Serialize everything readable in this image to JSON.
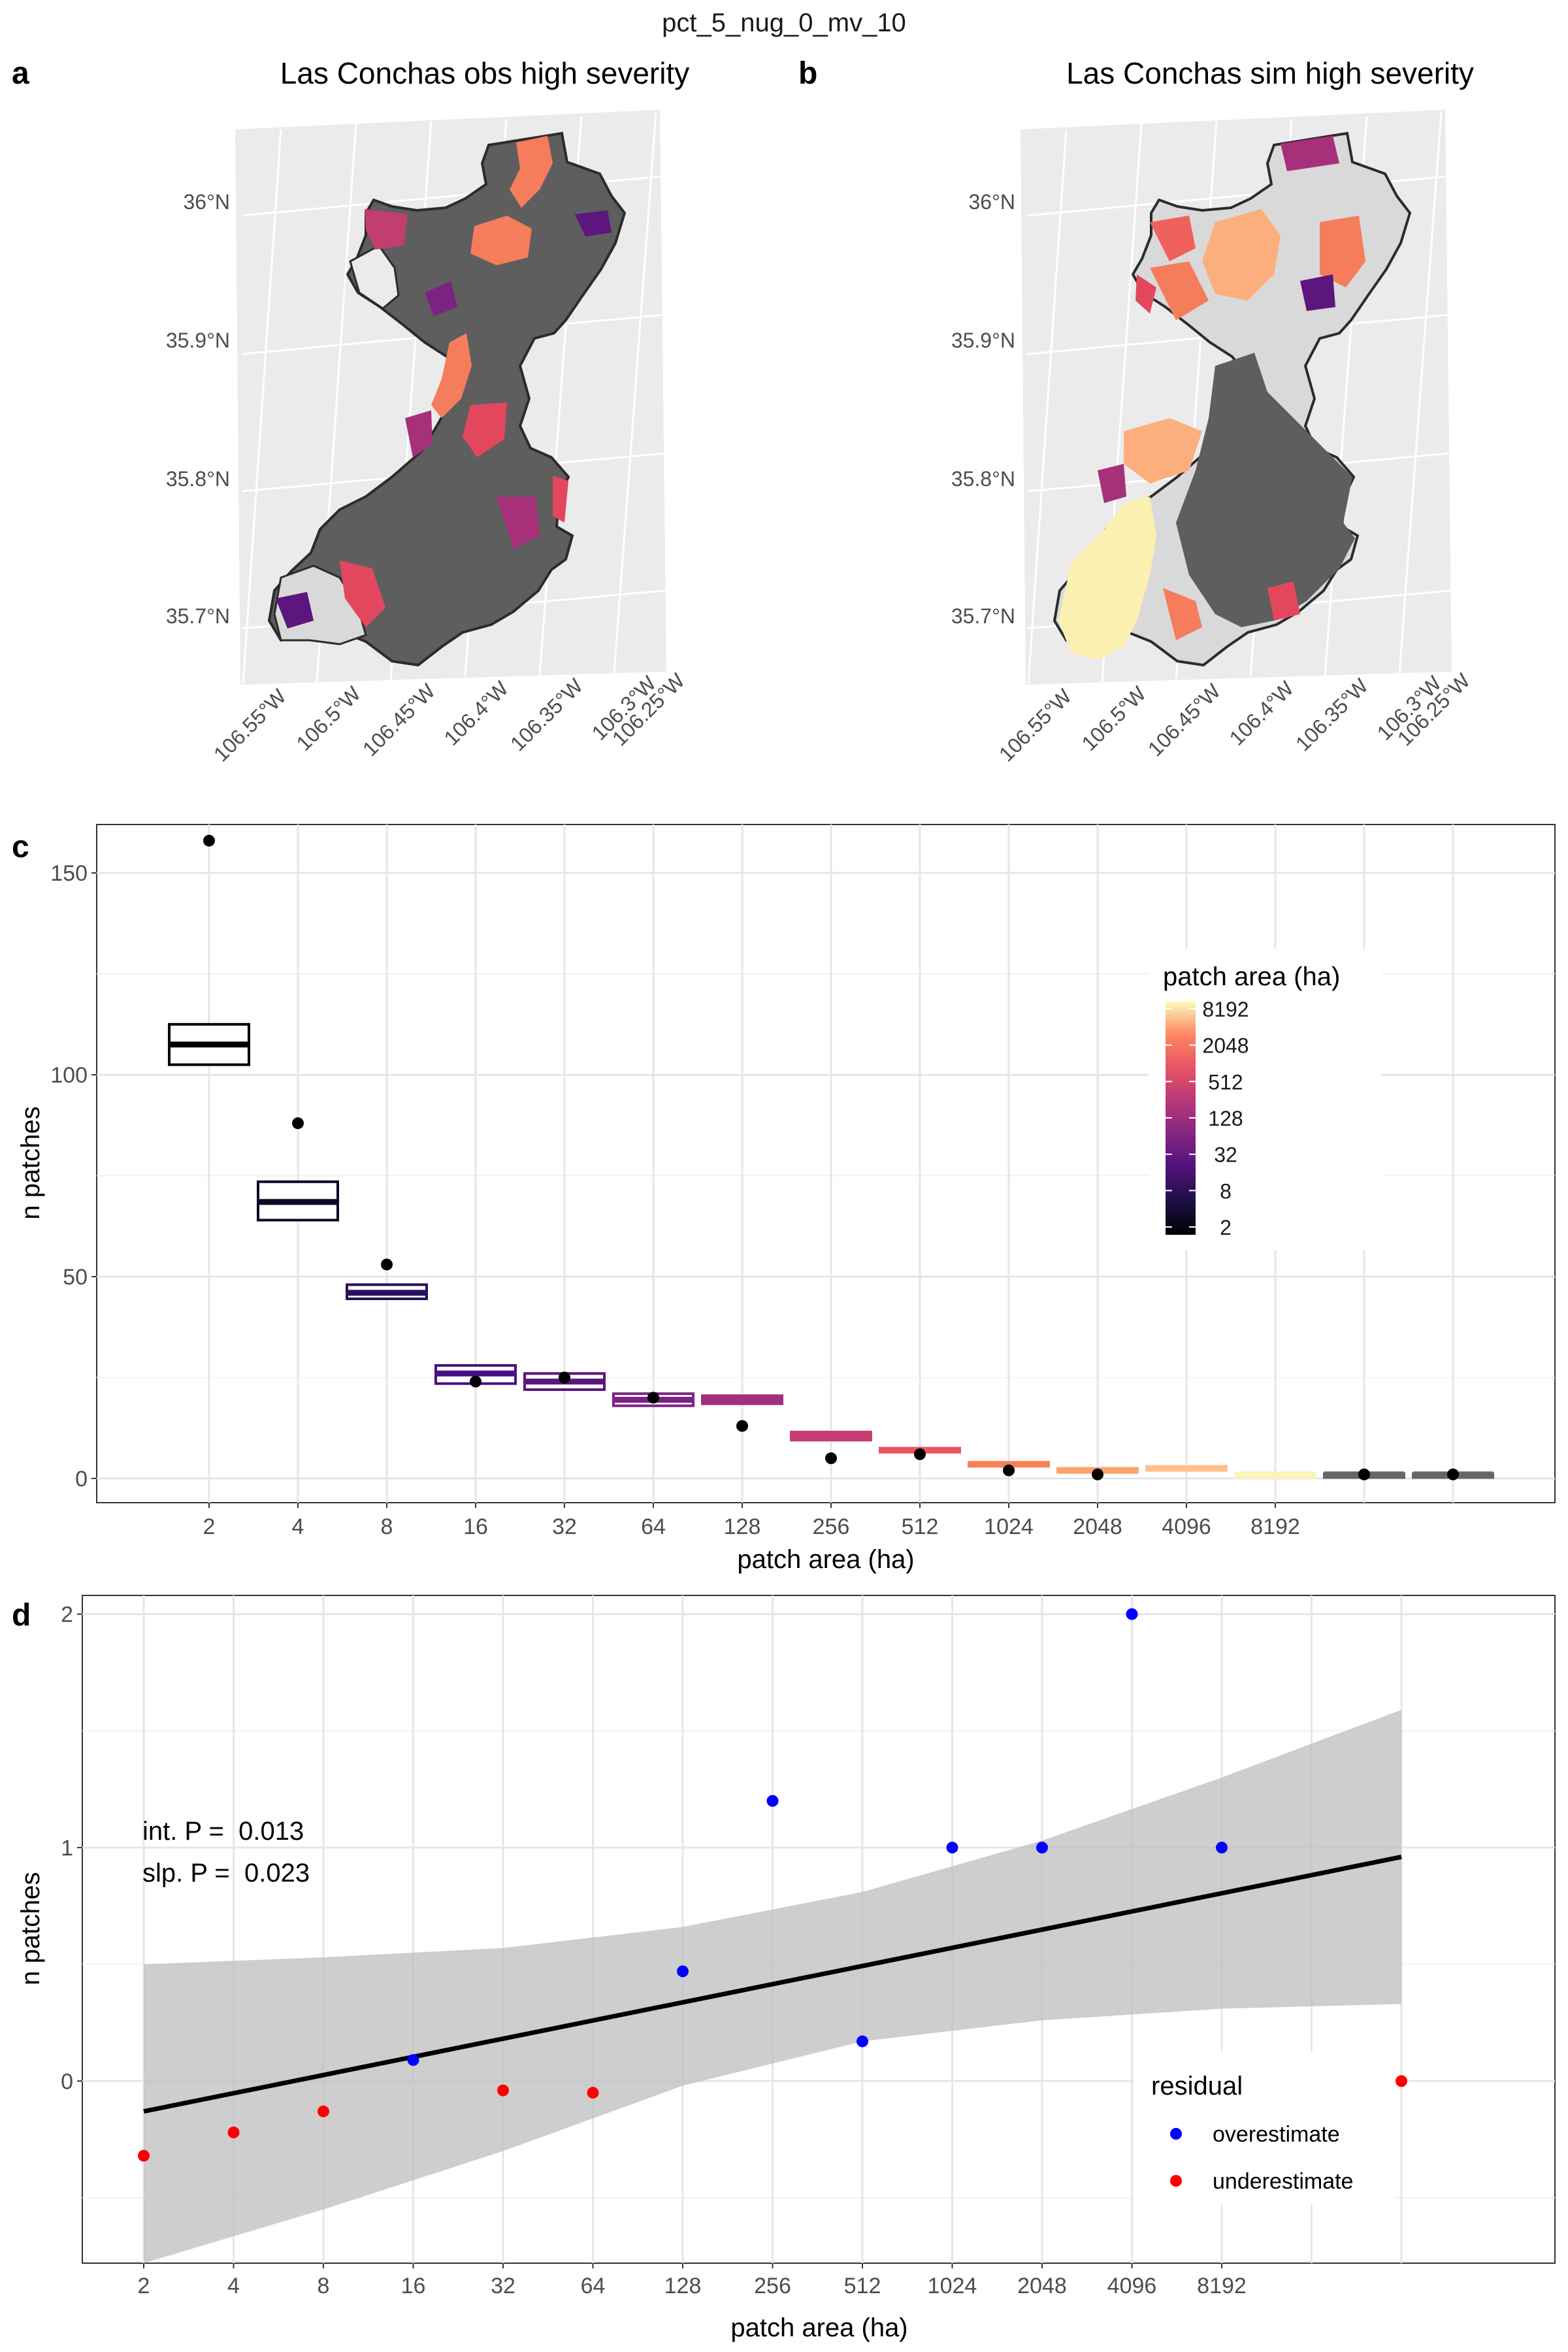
{
  "figure_title": "pct_5_nug_0_mv_10",
  "panels": {
    "a": {
      "letter": "a",
      "title": "Las Conchas obs high severity"
    },
    "b": {
      "letter": "b",
      "title": "Las Conchas sim high severity"
    },
    "c": {
      "letter": "c"
    },
    "d": {
      "letter": "d"
    }
  },
  "maps": {
    "lat_labels": [
      "36°N",
      "35.9°N",
      "35.8°N",
      "35.7°N"
    ],
    "lon_labels": [
      "106.55°W",
      "106.5°W",
      "106.45°W",
      "106.4°W",
      "106.35°W",
      "106.3°W",
      "106.25°W"
    ]
  },
  "chart_data": [
    {
      "panel": "c",
      "type": "boxplot",
      "xlabel": "patch area (ha)",
      "ylabel": "n patches",
      "x_scale": "log2",
      "ylim": [
        -6,
        162
      ],
      "y_ticks": [
        0,
        50,
        100,
        150
      ],
      "categories": [
        "2",
        "4",
        "8",
        "16",
        "32",
        "64",
        "128",
        "256",
        "512",
        "1024",
        "2048",
        "4096",
        "8192",
        "",
        ""
      ],
      "box_fill_colors": [
        "#000004",
        "#0c0926",
        "#2a0f5c",
        "#481184",
        "#5b167e",
        "#7b2382",
        "#a02f7c",
        "#c73d73",
        "#e85460",
        "#f78258",
        "#fca46c",
        "#fec18a",
        "#fcf3b8",
        "#666666",
        "#666666"
      ],
      "boxes": [
        {
          "low": 102.5,
          "median": 107.5,
          "high": 112.5
        },
        {
          "low": 64,
          "median": 68.5,
          "high": 73.5
        },
        {
          "low": 44.5,
          "median": 46,
          "high": 48
        },
        {
          "low": 23.5,
          "median": 26,
          "high": 28
        },
        {
          "low": 22,
          "median": 24,
          "high": 26
        },
        {
          "low": 18,
          "median": 19.5,
          "high": 21
        },
        {
          "low": 18.5,
          "median": 19.5,
          "high": 20.5
        },
        {
          "low": 9.5,
          "median": 10.5,
          "high": 11.5
        },
        {
          "low": 6.5,
          "median": 7,
          "high": 7.5
        },
        {
          "low": 3,
          "median": 3.5,
          "high": 4
        },
        {
          "low": 1.5,
          "median": 2,
          "high": 2.5
        },
        {
          "low": 2,
          "median": 2.5,
          "high": 3
        },
        {
          "low": 0.8,
          "median": 1,
          "high": 1.2
        },
        {
          "low": 0.8,
          "median": 1,
          "high": 1.2
        },
        {
          "low": 0.8,
          "median": 1,
          "high": 1.2
        }
      ],
      "observed": [
        158,
        88,
        53,
        24,
        25,
        20,
        13,
        5,
        6,
        2,
        1,
        null,
        null,
        1,
        1
      ],
      "legend": {
        "title": "patch area (ha)",
        "labels": [
          "8192",
          "2048",
          "512",
          "128",
          "32",
          "8",
          "2"
        ],
        "colormap": "magma"
      }
    },
    {
      "panel": "d",
      "type": "scatter",
      "xlabel": "patch area (ha)",
      "ylabel": "n patches",
      "x_ticks": [
        "2",
        "4",
        "8",
        "16",
        "32",
        "64",
        "128",
        "256",
        "512",
        "1024",
        "2048",
        "4096",
        "8192"
      ],
      "y_ticks": [
        0,
        1,
        2
      ],
      "ylim": [
        -0.78,
        2.08
      ],
      "points": [
        {
          "x": 1,
          "y": -0.32,
          "residual": "underestimate"
        },
        {
          "x": 2,
          "y": -0.22,
          "residual": "underestimate"
        },
        {
          "x": 3,
          "y": -0.13,
          "residual": "underestimate"
        },
        {
          "x": 4,
          "y": 0.09,
          "residual": "overestimate"
        },
        {
          "x": 5,
          "y": -0.04,
          "residual": "underestimate"
        },
        {
          "x": 6,
          "y": -0.05,
          "residual": "underestimate"
        },
        {
          "x": 7,
          "y": 0.47,
          "residual": "overestimate"
        },
        {
          "x": 8,
          "y": 1.2,
          "residual": "overestimate"
        },
        {
          "x": 9,
          "y": 0.17,
          "residual": "overestimate"
        },
        {
          "x": 10,
          "y": 1.0,
          "residual": "overestimate"
        },
        {
          "x": 11,
          "y": 1.0,
          "residual": "overestimate"
        },
        {
          "x": 12,
          "y": 2.0,
          "residual": "overestimate"
        },
        {
          "x": 13,
          "y": 1.0,
          "residual": "overestimate"
        },
        {
          "x": 14,
          "y": 0.0,
          "residual": "underestimate"
        },
        {
          "x": 15,
          "y": 0.0,
          "residual": "underestimate"
        }
      ],
      "fit": {
        "x": [
          1,
          15
        ],
        "y": [
          -0.13,
          0.96
        ]
      },
      "ci_band": {
        "x": [
          1,
          3,
          5,
          7,
          9,
          11,
          13,
          15
        ],
        "lower": [
          -0.78,
          -0.55,
          -0.3,
          -0.02,
          0.17,
          0.26,
          0.31,
          0.33
        ],
        "upper": [
          0.5,
          0.53,
          0.57,
          0.66,
          0.81,
          1.03,
          1.3,
          1.59
        ]
      },
      "annotations": [
        "int. P =  0.013",
        "slp. P =  0.023"
      ],
      "legend": {
        "title": "residual",
        "entries": [
          {
            "label": "overestimate",
            "color": "#0000ff"
          },
          {
            "label": "underestimate",
            "color": "#ff0000"
          }
        ]
      }
    }
  ]
}
